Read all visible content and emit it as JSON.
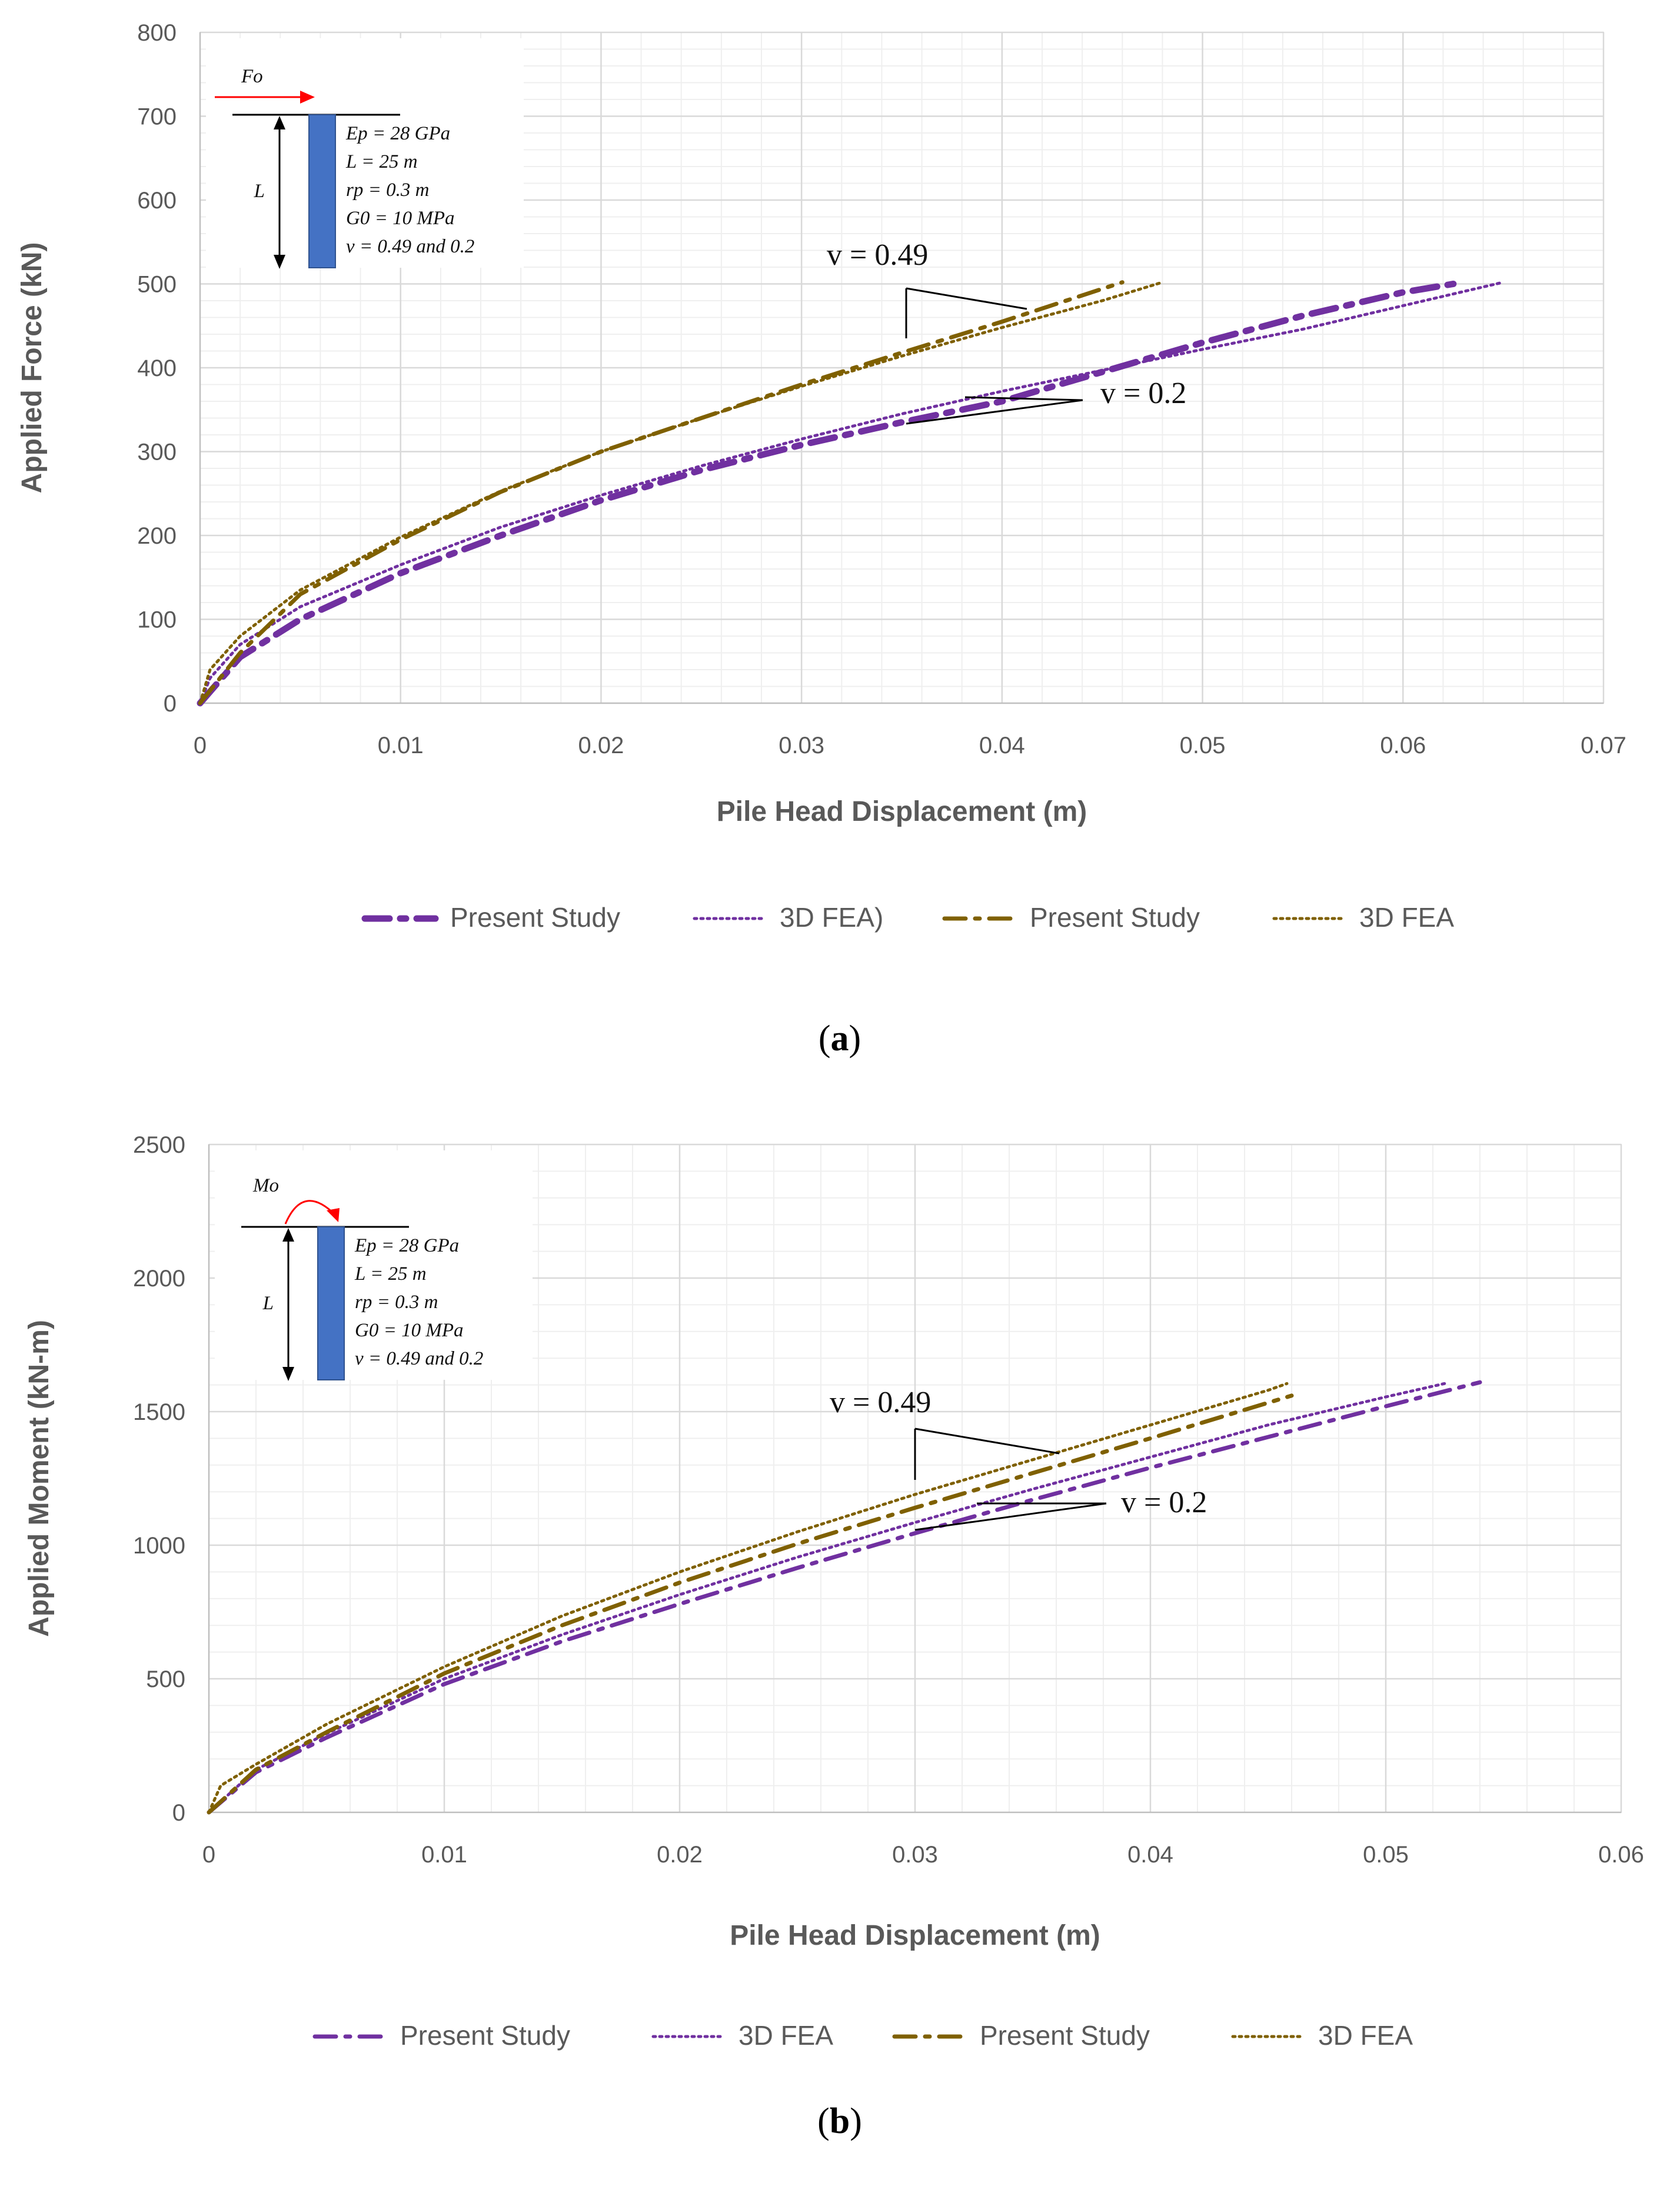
{
  "colors": {
    "purple": "#7030A0",
    "olive": "#7F6000",
    "grid_major": "#d9d9d9",
    "grid_minor": "#efefef",
    "pile": "#4472C4",
    "arrow_red": "#ff0000"
  },
  "chart_data": [
    {
      "id": "a",
      "type": "line",
      "panel_label": "a",
      "xlabel": "Pile Head Displacement (m)",
      "ylabel": "Applied Force (kN)",
      "xlim": [
        0,
        0.07
      ],
      "ylim": [
        0,
        800
      ],
      "xticks": [
        "0",
        "0.01",
        "0.02",
        "0.03",
        "0.04",
        "0.05",
        "0.06",
        "0.07"
      ],
      "yticks": [
        "0",
        "100",
        "200",
        "300",
        "400",
        "500",
        "600",
        "700",
        "800"
      ],
      "series": [
        {
          "name": "Present Study",
          "group": "v = 0.2",
          "color": "#7030A0",
          "style": "dashdot-bold",
          "x": [
            0,
            0.002,
            0.005,
            0.01,
            0.015,
            0.02,
            0.025,
            0.03,
            0.035,
            0.04,
            0.045,
            0.05,
            0.055,
            0.06,
            0.063
          ],
          "y": [
            0,
            55,
            100,
            155,
            200,
            242,
            278,
            308,
            335,
            360,
            395,
            430,
            462,
            490,
            502
          ]
        },
        {
          "name": "3D FEA)",
          "group": "v = 0.2",
          "color": "#7030A0",
          "style": "dotted",
          "x": [
            0,
            0.0005,
            0.002,
            0.005,
            0.01,
            0.015,
            0.02,
            0.025,
            0.03,
            0.035,
            0.04,
            0.045,
            0.05,
            0.055,
            0.06,
            0.065
          ],
          "y": [
            0,
            30,
            70,
            115,
            165,
            210,
            248,
            283,
            315,
            345,
            372,
            397,
            422,
            446,
            474,
            502
          ]
        },
        {
          "name": "Present Study",
          "group": "v = 0.49",
          "color": "#7F6000",
          "style": "dashdot",
          "x": [
            0,
            0.002,
            0.005,
            0.01,
            0.015,
            0.02,
            0.025,
            0.03,
            0.035,
            0.04,
            0.046
          ],
          "y": [
            0,
            60,
            130,
            195,
            252,
            300,
            340,
            380,
            418,
            455,
            502
          ]
        },
        {
          "name": "3D FEA",
          "group": "v = 0.49",
          "color": "#7F6000",
          "style": "dotted",
          "x": [
            0,
            0.0005,
            0.002,
            0.005,
            0.01,
            0.015,
            0.02,
            0.025,
            0.03,
            0.035,
            0.04,
            0.045,
            0.048
          ],
          "y": [
            0,
            40,
            80,
            135,
            198,
            253,
            300,
            340,
            378,
            414,
            448,
            480,
            502
          ]
        }
      ],
      "annotations": [
        {
          "text": "v = 0.49"
        },
        {
          "text": "v = 0.2"
        }
      ],
      "inset": {
        "load_label": "Fo",
        "length_label": "L",
        "lines": [
          "Ep = 28 GPa",
          "L =  25 m",
          "rp = 0.3 m",
          "G0 = 10 MPa",
          "v = 0.49 and 0.2"
        ]
      }
    },
    {
      "id": "b",
      "type": "line",
      "panel_label": "b",
      "xlabel": "Pile Head Displacement (m)",
      "ylabel": "Applied Moment (kN-m)",
      "xlim": [
        0,
        0.06
      ],
      "ylim": [
        0,
        2500
      ],
      "xticks": [
        "0",
        "0.01",
        "0.02",
        "0.03",
        "0.04",
        "0.05",
        "0.06"
      ],
      "yticks": [
        "0",
        "500",
        "1000",
        "1500",
        "2000",
        "2500"
      ],
      "series": [
        {
          "name": "Present Study",
          "group": "v = 0.2",
          "color": "#7030A0",
          "style": "dashdot",
          "x": [
            0,
            0.002,
            0.005,
            0.01,
            0.015,
            0.02,
            0.025,
            0.03,
            0.035,
            0.04,
            0.045,
            0.05,
            0.054
          ],
          "y": [
            0,
            150,
            280,
            480,
            640,
            780,
            915,
            1045,
            1170,
            1290,
            1405,
            1520,
            1610
          ]
        },
        {
          "name": "3D FEA",
          "group": "v = 0.2",
          "color": "#7030A0",
          "style": "dotted",
          "x": [
            0,
            0.002,
            0.005,
            0.01,
            0.015,
            0.02,
            0.025,
            0.03,
            0.035,
            0.04,
            0.045,
            0.05,
            0.0525
          ],
          "y": [
            0,
            160,
            295,
            500,
            665,
            815,
            955,
            1085,
            1210,
            1330,
            1450,
            1555,
            1605
          ]
        },
        {
          "name": "Present Study",
          "group": "v = 0.49",
          "color": "#7F6000",
          "style": "dashdot",
          "x": [
            0,
            0.002,
            0.005,
            0.01,
            0.015,
            0.02,
            0.025,
            0.03,
            0.035,
            0.04,
            0.046
          ],
          "y": [
            0,
            160,
            300,
            520,
            700,
            860,
            1005,
            1140,
            1270,
            1400,
            1560
          ]
        },
        {
          "name": "3D FEA",
          "group": "v = 0.49",
          "color": "#7F6000",
          "style": "dotted",
          "x": [
            0,
            0.0005,
            0.002,
            0.005,
            0.01,
            0.015,
            0.02,
            0.025,
            0.03,
            0.035,
            0.04,
            0.045,
            0.0458
          ],
          "y": [
            0,
            100,
            180,
            330,
            545,
            735,
            900,
            1050,
            1190,
            1320,
            1450,
            1580,
            1605
          ]
        }
      ],
      "annotations": [
        {
          "text": "v = 0.49"
        },
        {
          "text": "v = 0.2"
        }
      ],
      "inset": {
        "load_label": "Mo",
        "length_label": "L",
        "lines": [
          "Ep = 28 GPa",
          "L =  25 m",
          "rp = 0.3 m",
          "G0 = 10 MPa",
          "v = 0.49 and 0.2"
        ]
      }
    }
  ]
}
